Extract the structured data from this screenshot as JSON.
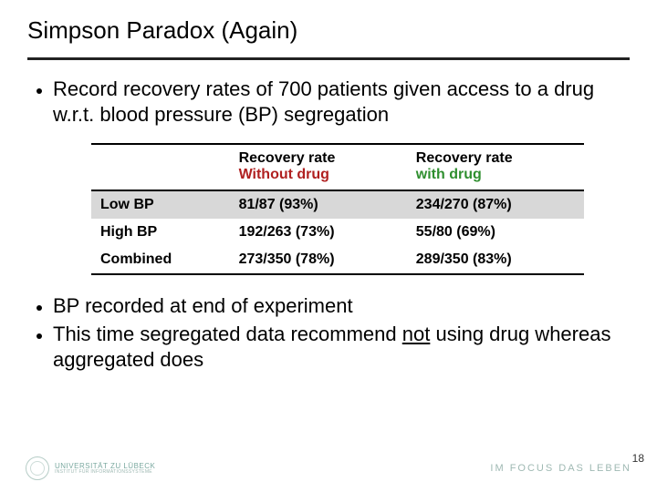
{
  "title": "Simpson Paradox (Again)",
  "bullets_top": [
    "Record recovery rates of 700 patients given access to a drug w.r.t. blood pressure (BP) segregation"
  ],
  "bullets_bottom": [
    "BP recorded at end of experiment",
    "This time segregated data recommend <span class=\"underline-not\">not</span> using drug whereas aggregated does"
  ],
  "table": {
    "columns": [
      {
        "label": ""
      },
      {
        "line1": "Recovery rate",
        "line2": "Without drug",
        "line2_class": "red"
      },
      {
        "line1": "Recovery rate",
        "line2": "with drug",
        "line2_class": "green"
      }
    ],
    "rows": [
      {
        "label": "Low BP",
        "c1": "81/87 (93%)",
        "c2": "234/270 (87%)",
        "stripe": true
      },
      {
        "label": "High BP",
        "c1": "192/263 (73%)",
        "c2": "55/80 (69%)",
        "stripe": false
      },
      {
        "label": "Combined",
        "c1": "273/350 (78%)",
        "c2": "289/350 (83%)",
        "stripe": false
      }
    ],
    "font_size": 16,
    "header_font_weight": 700,
    "stripe_color": "#d8d8d8",
    "border_color": "#000000"
  },
  "footer": {
    "university_line1": "UNIVERSITÄT ZU LÜBECK",
    "university_line2": "INSTITUT FÜR INFORMATIONSSYSTEME",
    "motto": "IM FOCUS DAS LEBEN"
  },
  "page_number": "18",
  "colors": {
    "text": "#000000",
    "rule": "#222222",
    "red": "#b02020",
    "green": "#2f8f2f",
    "teal": "#7ba9a0",
    "background": "#ffffff"
  }
}
